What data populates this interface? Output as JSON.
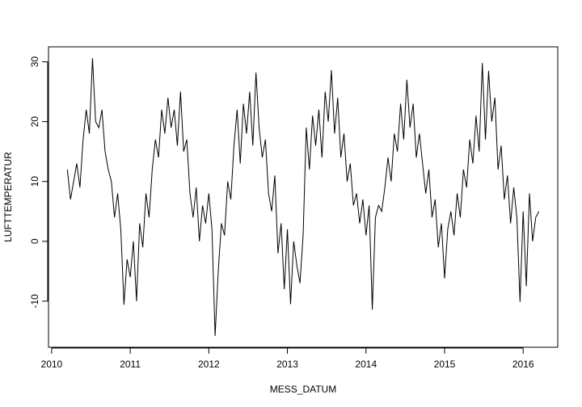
{
  "chart_data": {
    "type": "line",
    "x_label": "MESS_DATUM",
    "y_label": "LUFTTEMPERATUR",
    "x": [
      2010.2,
      2010.24,
      2010.28,
      2010.32,
      2010.36,
      2010.4,
      2010.44,
      2010.48,
      2010.52,
      2010.56,
      2010.6,
      2010.64,
      2010.68,
      2010.72,
      2010.76,
      2010.8,
      2010.84,
      2010.88,
      2010.92,
      2010.96,
      2011.0,
      2011.04,
      2011.08,
      2011.12,
      2011.16,
      2011.2,
      2011.24,
      2011.28,
      2011.32,
      2011.36,
      2011.4,
      2011.44,
      2011.48,
      2011.52,
      2011.56,
      2011.6,
      2011.64,
      2011.68,
      2011.72,
      2011.76,
      2011.8,
      2011.84,
      2011.88,
      2011.92,
      2011.96,
      2012.0,
      2012.04,
      2012.08,
      2012.12,
      2012.16,
      2012.2,
      2012.24,
      2012.28,
      2012.32,
      2012.36,
      2012.4,
      2012.44,
      2012.48,
      2012.52,
      2012.56,
      2012.6,
      2012.64,
      2012.68,
      2012.72,
      2012.76,
      2012.8,
      2012.84,
      2012.88,
      2012.92,
      2012.96,
      2013.0,
      2013.04,
      2013.08,
      2013.12,
      2013.16,
      2013.2,
      2013.24,
      2013.28,
      2013.32,
      2013.36,
      2013.4,
      2013.44,
      2013.48,
      2013.52,
      2013.56,
      2013.6,
      2013.64,
      2013.68,
      2013.72,
      2013.76,
      2013.8,
      2013.84,
      2013.88,
      2013.92,
      2013.96,
      2014.0,
      2014.04,
      2014.08,
      2014.12,
      2014.16,
      2014.2,
      2014.24,
      2014.28,
      2014.32,
      2014.36,
      2014.4,
      2014.44,
      2014.48,
      2014.52,
      2014.56,
      2014.6,
      2014.64,
      2014.68,
      2014.72,
      2014.76,
      2014.8,
      2014.84,
      2014.88,
      2014.92,
      2014.96,
      2015.0,
      2015.04,
      2015.08,
      2015.12,
      2015.16,
      2015.2,
      2015.24,
      2015.28,
      2015.32,
      2015.36,
      2015.4,
      2015.44,
      2015.48,
      2015.52,
      2015.56,
      2015.6,
      2015.64,
      2015.68,
      2015.72,
      2015.76,
      2015.8,
      2015.84,
      2015.88,
      2015.92,
      2015.96,
      2016.0,
      2016.04,
      2016.08,
      2016.12,
      2016.16,
      2016.2
    ],
    "values": [
      12,
      7,
      10,
      13,
      9,
      17,
      22,
      18,
      30.6,
      20,
      19,
      22,
      15,
      12,
      10,
      4,
      8,
      2,
      -10.6,
      -3,
      -6,
      0,
      -10,
      3,
      -1,
      8,
      4,
      12,
      17,
      14,
      22,
      18,
      24,
      19,
      22,
      16,
      25,
      15,
      17,
      8,
      4,
      9,
      0,
      6,
      3,
      8,
      2,
      -15.8,
      -5,
      3,
      1,
      10,
      7,
      16,
      22,
      13,
      23,
      18,
      25,
      16,
      28.2,
      19,
      14,
      17,
      8,
      5,
      11,
      -2,
      3,
      -8,
      2,
      -10.5,
      0,
      -4,
      -7,
      1,
      19,
      12,
      21,
      16,
      22,
      14,
      25,
      20,
      28.6,
      18,
      24,
      14,
      18,
      10,
      13,
      6,
      8,
      3,
      7,
      1,
      6,
      -11.4,
      4,
      6,
      5,
      9,
      14,
      10,
      18,
      15,
      23,
      17,
      27,
      19,
      23,
      14,
      18,
      13,
      8,
      12,
      4,
      7,
      -1,
      3,
      -6.2,
      2,
      5,
      1,
      8,
      4,
      12,
      9,
      17,
      13,
      21,
      15,
      29.8,
      17,
      28.5,
      20,
      24,
      12,
      16,
      7,
      11,
      3,
      9,
      4,
      -10.1,
      5,
      -7.5,
      8,
      0,
      4,
      5
    ],
    "color": "#000000",
    "xlim": [
      2009.96,
      2016.44
    ],
    "xticks": [
      2010,
      2011,
      2012,
      2013,
      2014,
      2015,
      2016
    ],
    "ylim": [
      -17.7,
      32.5
    ],
    "yticks": [
      -10,
      0,
      10,
      20,
      30
    ],
    "grid": false
  }
}
